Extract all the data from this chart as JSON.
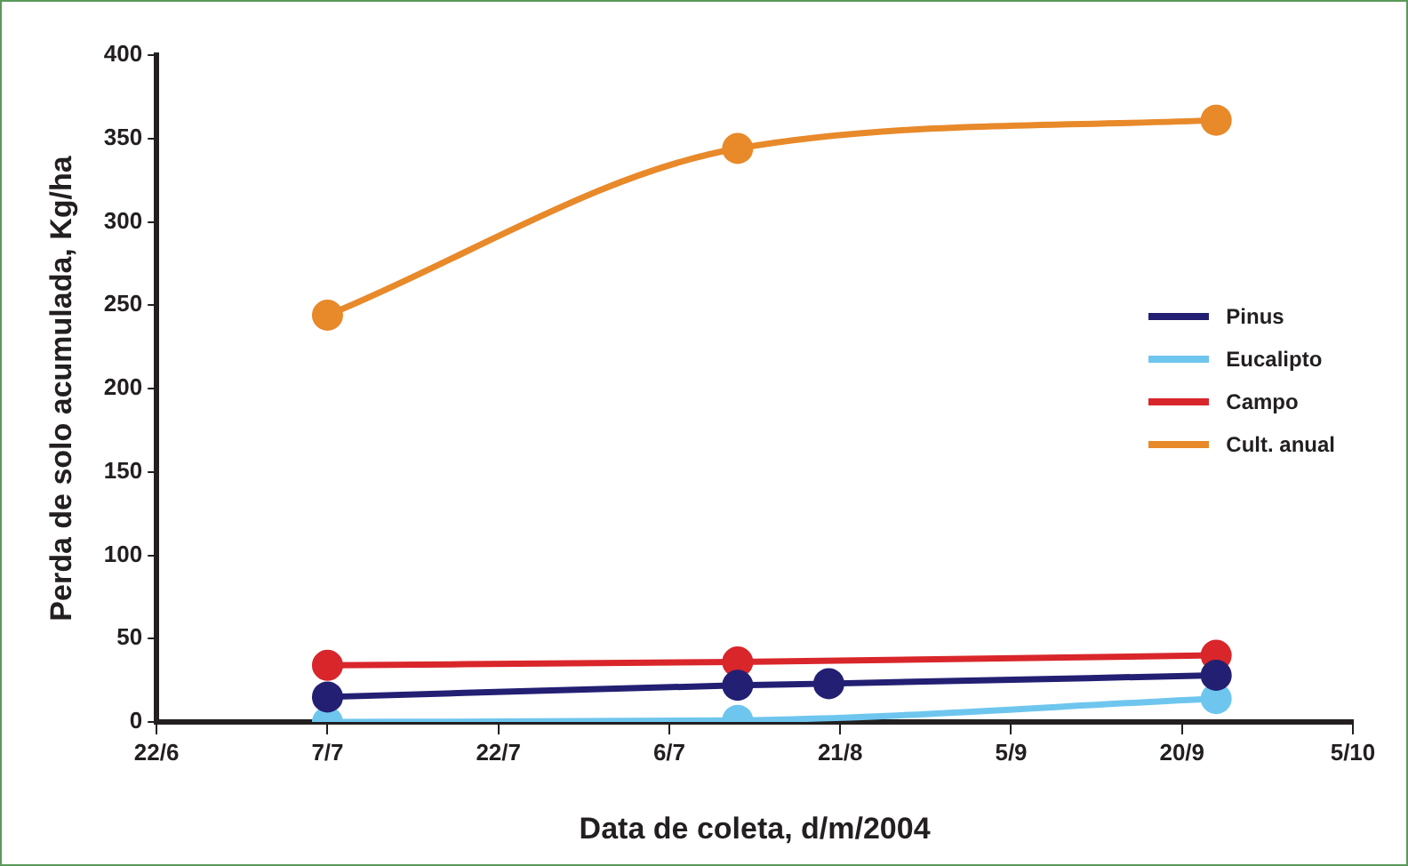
{
  "chart_data": {
    "type": "line",
    "xlabel": "Data de coleta, d/m/2004",
    "ylabel": "Perda de solo acumulada, Kg/ha",
    "xlim": [
      "2004-06-22",
      "2004-10-05"
    ],
    "xticks": [
      {
        "value": "2004-06-22",
        "label": "22/6"
      },
      {
        "value": "2004-07-07",
        "label": "7/7"
      },
      {
        "value": "2004-07-22",
        "label": "22/7"
      },
      {
        "value": "2004-08-06",
        "label": "6/7"
      },
      {
        "value": "2004-08-21",
        "label": "21/8"
      },
      {
        "value": "2004-09-05",
        "label": "5/9"
      },
      {
        "value": "2004-09-20",
        "label": "20/9"
      },
      {
        "value": "2004-10-05",
        "label": "5/10"
      }
    ],
    "ylim": [
      0,
      400
    ],
    "yticks": [
      0,
      50,
      100,
      150,
      200,
      250,
      300,
      350,
      400
    ],
    "series": [
      {
        "name": "Pinus",
        "color": "#231f73",
        "x": [
          "2004-07-07",
          "2004-08-12",
          "2004-08-20",
          "2004-09-23"
        ],
        "values": [
          15,
          22,
          23,
          28
        ]
      },
      {
        "name": "Eucalipto",
        "color": "#6ec6ee",
        "x": [
          "2004-07-07",
          "2004-08-12",
          "2004-09-23"
        ],
        "values": [
          0,
          1,
          14
        ]
      },
      {
        "name": "Campo",
        "color": "#d9262b",
        "x": [
          "2004-07-07",
          "2004-08-12",
          "2004-09-23"
        ],
        "values": [
          34,
          36,
          40
        ]
      },
      {
        "name": "Cult. anual",
        "color": "#e8892a",
        "x": [
          "2004-07-07",
          "2004-08-12",
          "2004-09-23"
        ],
        "values": [
          244,
          344,
          361
        ]
      }
    ],
    "marker": "circle",
    "line_style": "solid",
    "grid": false,
    "legend": "right"
  }
}
